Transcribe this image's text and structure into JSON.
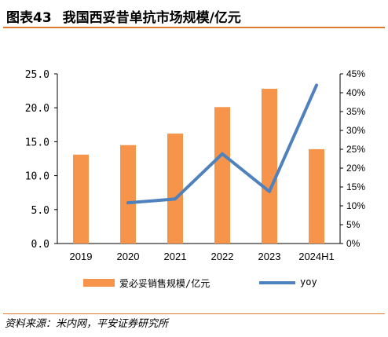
{
  "header": {
    "figure_number": "图表43",
    "title": "我国西妥昔单抗市场规模/亿元"
  },
  "footer": {
    "source": "资料来源：米内网，平安证券研究所"
  },
  "colors": {
    "bar": "#f5944a",
    "line": "#4f81bd",
    "accent_rule": "#e07a2e"
  },
  "legend": {
    "bar_label": "爱必妥销售规模/亿元",
    "line_label": "yoy"
  },
  "chart_data": {
    "type": "bar",
    "categories": [
      "2019",
      "2020",
      "2021",
      "2022",
      "2023",
      "2024H1"
    ],
    "series": [
      {
        "name": "爱必妥销售规模/亿元",
        "type": "bar",
        "axis": "left",
        "values": [
          13.1,
          14.5,
          16.2,
          20.1,
          22.8,
          13.9
        ]
      },
      {
        "name": "yoy",
        "type": "line",
        "axis": "right",
        "values": [
          null,
          0.108,
          0.118,
          0.238,
          0.138,
          0.42
        ]
      }
    ],
    "y_left": {
      "min": 0,
      "max": 25,
      "ticks": [
        "0.0",
        "5.0",
        "10.0",
        "15.0",
        "20.0",
        "25.0"
      ]
    },
    "y_right": {
      "min": 0,
      "max": 0.45,
      "ticks": [
        "0%",
        "5%",
        "10%",
        "15%",
        "20%",
        "25%",
        "30%",
        "35%",
        "40%",
        "45%"
      ]
    },
    "grid": false,
    "legend_position": "bottom"
  }
}
